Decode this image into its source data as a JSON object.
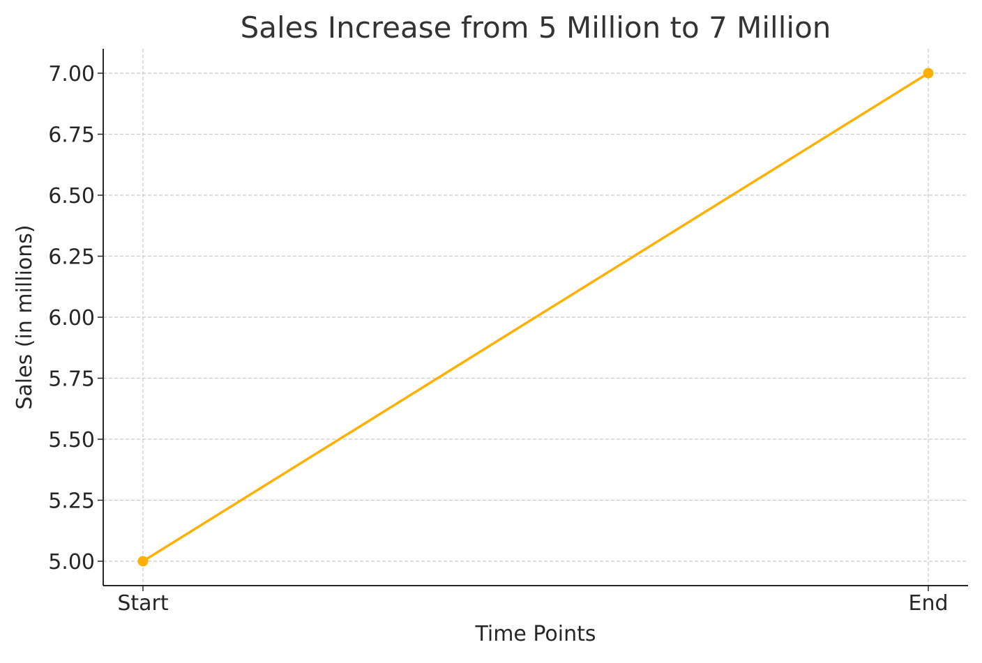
{
  "chart_data": {
    "type": "line",
    "title": "Sales Increase from 5 Million to 7 Million",
    "xlabel": "Time Points",
    "ylabel": "Sales (in millions)",
    "categories": [
      "Start",
      "End"
    ],
    "series": [
      {
        "values": [
          5.0,
          7.0
        ],
        "color": "#FFB000"
      }
    ],
    "ylim": [
      4.9,
      7.1
    ],
    "yticks": [
      "5.00",
      "5.25",
      "5.50",
      "5.75",
      "6.00",
      "6.25",
      "6.50",
      "6.75",
      "7.00"
    ],
    "grid": true,
    "legend": "none"
  }
}
